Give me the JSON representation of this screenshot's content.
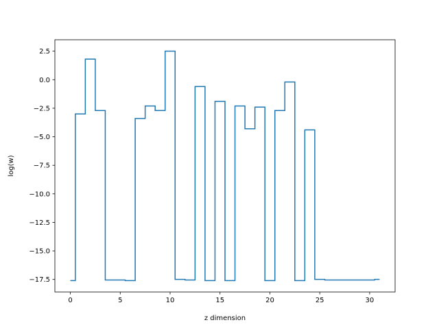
{
  "chart_data": {
    "type": "line",
    "step": "mid",
    "title": "",
    "xlabel": "z dimension",
    "ylabel": "log(w)",
    "xlim": [
      -1.55,
      32.55
    ],
    "ylim": [
      -18.6,
      3.5
    ],
    "xticks": [
      0,
      5,
      10,
      15,
      20,
      25,
      30
    ],
    "xtick_labels": [
      "0",
      "5",
      "10",
      "15",
      "20",
      "25",
      "30"
    ],
    "yticks": [
      2.5,
      0.0,
      -2.5,
      -5.0,
      -7.5,
      -10.0,
      -12.5,
      -15.0,
      -17.5
    ],
    "ytick_labels": [
      "2.5",
      "0.0",
      "−2.5",
      "−5.0",
      "−7.5",
      "−10.0",
      "−12.5",
      "−15.0",
      "−17.5"
    ],
    "grid": false,
    "series": [
      {
        "color": "#1f77b4",
        "x": [
          0,
          1,
          2,
          3,
          4,
          5,
          6,
          7,
          8,
          9,
          10,
          11,
          12,
          13,
          14,
          15,
          16,
          17,
          18,
          19,
          20,
          21,
          22,
          23,
          24,
          25,
          26,
          27,
          28,
          29,
          30,
          31
        ],
        "y": [
          -17.6,
          -3.0,
          1.8,
          -2.7,
          -17.55,
          -17.55,
          -17.6,
          -3.4,
          -2.3,
          -2.7,
          2.5,
          -17.5,
          -17.55,
          -0.6,
          -17.6,
          -1.9,
          -17.6,
          -2.3,
          -4.3,
          -2.4,
          -17.6,
          -2.7,
          -0.2,
          -17.6,
          -4.4,
          -17.5,
          -17.55,
          -17.55,
          -17.55,
          -17.55,
          -17.55,
          -17.5
        ]
      }
    ]
  }
}
